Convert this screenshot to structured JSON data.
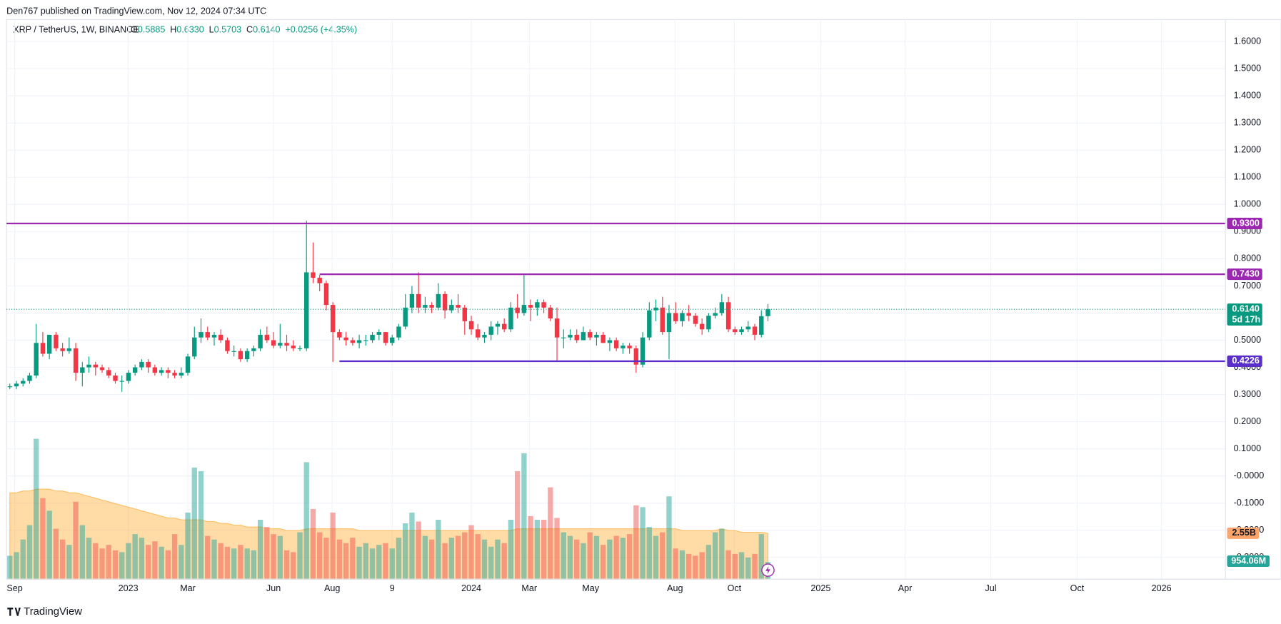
{
  "header": {
    "published": "Den767 published on TradingView.com, Nov 12, 2024 07:34 UTC",
    "symbol": "XRP / TetherUS, 1W, BINANCE",
    "ohlc": [
      {
        "key": "O",
        "value": "0.5885"
      },
      {
        "key": "H",
        "value": "0.6330"
      },
      {
        "key": "L",
        "value": "0.5703"
      },
      {
        "key": "C",
        "value": "0.6140"
      }
    ],
    "change": "+0.0256 (+4.35%)"
  },
  "chart_data": {
    "type": "candlestick",
    "up_color": "#089981",
    "down_color": "#f23645",
    "xlim": [
      -0.5,
      184.4
    ],
    "ylim": [
      -0.38,
      1.681
    ],
    "grid": true,
    "xticks": [
      {
        "value": 0.74,
        "label": "Sep"
      },
      {
        "value": 17.97,
        "label": "2023"
      },
      {
        "value": 27.0,
        "label": "Mar"
      },
      {
        "value": 40.0,
        "label": "Jun"
      },
      {
        "value": 48.9,
        "label": "Aug"
      },
      {
        "value": 58.0,
        "label": "9"
      },
      {
        "value": 70.0,
        "label": "2024"
      },
      {
        "value": 78.8,
        "label": "Mar"
      },
      {
        "value": 88.1,
        "label": "May"
      },
      {
        "value": 100.9,
        "label": "Aug"
      },
      {
        "value": 109.9,
        "label": "Oct"
      },
      {
        "value": 123.0,
        "label": "2025"
      },
      {
        "value": 135.8,
        "label": "Apr"
      },
      {
        "value": 148.8,
        "label": "Jul"
      },
      {
        "value": 161.9,
        "label": "Oct"
      },
      {
        "value": 174.7,
        "label": "2026"
      }
    ],
    "yticks": [
      {
        "value": 1.6,
        "label": "1.6000"
      },
      {
        "value": 1.5,
        "label": "1.5000"
      },
      {
        "value": 1.4,
        "label": "1.4000"
      },
      {
        "value": 1.3,
        "label": "1.3000"
      },
      {
        "value": 1.2,
        "label": "1.2000"
      },
      {
        "value": 1.1,
        "label": "1.1000"
      },
      {
        "value": 1.0,
        "label": "1.0000"
      },
      {
        "value": 0.9,
        "label": "0.9000"
      },
      {
        "value": 0.8,
        "label": "0.8000"
      },
      {
        "value": 0.7,
        "label": "0.7000"
      },
      {
        "value": 0.6,
        "label": "0.6000"
      },
      {
        "value": 0.5,
        "label": "0.5000"
      },
      {
        "value": 0.4,
        "label": "0.4000"
      },
      {
        "value": 0.3,
        "label": "0.3000"
      },
      {
        "value": 0.2,
        "label": "0.2000"
      },
      {
        "value": 0.1,
        "label": "0.1000"
      },
      {
        "value": 0,
        "label": "-0.0000"
      },
      {
        "value": -0.1,
        "label": "-0.1000"
      },
      {
        "value": -0.2,
        "label": "-0.2000"
      },
      {
        "value": -0.3,
        "label": "-0.3000"
      }
    ],
    "candles": [
      [
        0.33,
        0.34,
        0.32,
        0.33
      ],
      [
        0.33,
        0.35,
        0.32,
        0.34
      ],
      [
        0.34,
        0.36,
        0.33,
        0.35
      ],
      [
        0.35,
        0.38,
        0.34,
        0.37
      ],
      [
        0.37,
        0.56,
        0.36,
        0.49
      ],
      [
        0.49,
        0.53,
        0.44,
        0.45
      ],
      [
        0.45,
        0.52,
        0.43,
        0.52
      ],
      [
        0.52,
        0.53,
        0.46,
        0.47
      ],
      [
        0.47,
        0.49,
        0.44,
        0.46
      ],
      [
        0.46,
        0.51,
        0.45,
        0.47
      ],
      [
        0.47,
        0.49,
        0.35,
        0.38
      ],
      [
        0.38,
        0.42,
        0.33,
        0.4
      ],
      [
        0.4,
        0.44,
        0.38,
        0.41
      ],
      [
        0.41,
        0.42,
        0.37,
        0.4
      ],
      [
        0.4,
        0.41,
        0.38,
        0.39
      ],
      [
        0.39,
        0.4,
        0.36,
        0.37
      ],
      [
        0.37,
        0.38,
        0.34,
        0.35
      ],
      [
        0.35,
        0.37,
        0.31,
        0.35
      ],
      [
        0.35,
        0.39,
        0.34,
        0.38
      ],
      [
        0.38,
        0.41,
        0.37,
        0.4
      ],
      [
        0.4,
        0.43,
        0.39,
        0.42
      ],
      [
        0.42,
        0.43,
        0.38,
        0.4
      ],
      [
        0.4,
        0.41,
        0.37,
        0.38
      ],
      [
        0.38,
        0.4,
        0.37,
        0.39
      ],
      [
        0.39,
        0.4,
        0.36,
        0.38
      ],
      [
        0.38,
        0.39,
        0.36,
        0.37
      ],
      [
        0.37,
        0.4,
        0.36,
        0.38
      ],
      [
        0.38,
        0.45,
        0.37,
        0.44
      ],
      [
        0.44,
        0.55,
        0.43,
        0.51
      ],
      [
        0.51,
        0.58,
        0.49,
        0.53
      ],
      [
        0.53,
        0.55,
        0.5,
        0.51
      ],
      [
        0.51,
        0.53,
        0.48,
        0.52
      ],
      [
        0.52,
        0.54,
        0.49,
        0.5
      ],
      [
        0.5,
        0.51,
        0.45,
        0.46
      ],
      [
        0.46,
        0.48,
        0.44,
        0.46
      ],
      [
        0.46,
        0.47,
        0.42,
        0.43
      ],
      [
        0.43,
        0.47,
        0.42,
        0.46
      ],
      [
        0.46,
        0.48,
        0.44,
        0.47
      ],
      [
        0.47,
        0.54,
        0.46,
        0.52
      ],
      [
        0.52,
        0.55,
        0.49,
        0.5
      ],
      [
        0.5,
        0.53,
        0.47,
        0.48
      ],
      [
        0.48,
        0.56,
        0.47,
        0.49
      ],
      [
        0.49,
        0.52,
        0.46,
        0.48
      ],
      [
        0.48,
        0.5,
        0.46,
        0.47
      ],
      [
        0.47,
        0.48,
        0.46,
        0.47
      ],
      [
        0.47,
        0.94,
        0.46,
        0.75
      ],
      [
        0.75,
        0.86,
        0.71,
        0.73
      ],
      [
        0.73,
        0.74,
        0.68,
        0.71
      ],
      [
        0.71,
        0.72,
        0.61,
        0.63
      ],
      [
        0.63,
        0.64,
        0.42,
        0.53
      ],
      [
        0.53,
        0.54,
        0.5,
        0.51
      ],
      [
        0.51,
        0.53,
        0.48,
        0.5
      ],
      [
        0.5,
        0.51,
        0.48,
        0.49
      ],
      [
        0.49,
        0.52,
        0.47,
        0.5
      ],
      [
        0.5,
        0.52,
        0.48,
        0.5
      ],
      [
        0.5,
        0.53,
        0.49,
        0.52
      ],
      [
        0.52,
        0.54,
        0.5,
        0.53
      ],
      [
        0.53,
        0.53,
        0.48,
        0.49
      ],
      [
        0.49,
        0.52,
        0.48,
        0.51
      ],
      [
        0.51,
        0.56,
        0.5,
        0.55
      ],
      [
        0.55,
        0.67,
        0.54,
        0.62
      ],
      [
        0.62,
        0.7,
        0.6,
        0.67
      ],
      [
        0.67,
        0.75,
        0.6,
        0.62
      ],
      [
        0.62,
        0.66,
        0.6,
        0.63
      ],
      [
        0.63,
        0.64,
        0.6,
        0.62
      ],
      [
        0.62,
        0.71,
        0.61,
        0.67
      ],
      [
        0.67,
        0.68,
        0.58,
        0.61
      ],
      [
        0.61,
        0.65,
        0.6,
        0.63
      ],
      [
        0.63,
        0.67,
        0.6,
        0.62
      ],
      [
        0.62,
        0.63,
        0.52,
        0.57
      ],
      [
        0.57,
        0.59,
        0.52,
        0.54
      ],
      [
        0.54,
        0.56,
        0.5,
        0.51
      ],
      [
        0.51,
        0.53,
        0.49,
        0.52
      ],
      [
        0.52,
        0.57,
        0.5,
        0.55
      ],
      [
        0.55,
        0.57,
        0.52,
        0.56
      ],
      [
        0.56,
        0.58,
        0.53,
        0.54
      ],
      [
        0.54,
        0.64,
        0.53,
        0.62
      ],
      [
        0.62,
        0.67,
        0.58,
        0.6
      ],
      [
        0.6,
        0.74,
        0.59,
        0.63
      ],
      [
        0.63,
        0.65,
        0.57,
        0.62
      ],
      [
        0.62,
        0.65,
        0.59,
        0.64
      ],
      [
        0.64,
        0.65,
        0.6,
        0.62
      ],
      [
        0.62,
        0.63,
        0.57,
        0.58
      ],
      [
        0.58,
        0.62,
        0.42,
        0.51
      ],
      [
        0.51,
        0.54,
        0.47,
        0.51
      ],
      [
        0.51,
        0.54,
        0.5,
        0.52
      ],
      [
        0.52,
        0.54,
        0.49,
        0.5
      ],
      [
        0.5,
        0.55,
        0.5,
        0.53
      ],
      [
        0.53,
        0.54,
        0.5,
        0.51
      ],
      [
        0.51,
        0.53,
        0.48,
        0.52
      ],
      [
        0.52,
        0.53,
        0.49,
        0.49
      ],
      [
        0.49,
        0.51,
        0.46,
        0.5
      ],
      [
        0.5,
        0.51,
        0.46,
        0.47
      ],
      [
        0.47,
        0.49,
        0.45,
        0.48
      ],
      [
        0.48,
        0.49,
        0.45,
        0.47
      ],
      [
        0.47,
        0.48,
        0.38,
        0.41
      ],
      [
        0.41,
        0.53,
        0.4,
        0.51
      ],
      [
        0.51,
        0.64,
        0.5,
        0.61
      ],
      [
        0.61,
        0.65,
        0.57,
        0.62
      ],
      [
        0.62,
        0.66,
        0.52,
        0.53
      ],
      [
        0.53,
        0.63,
        0.43,
        0.6
      ],
      [
        0.6,
        0.64,
        0.56,
        0.57
      ],
      [
        0.57,
        0.61,
        0.55,
        0.6
      ],
      [
        0.6,
        0.63,
        0.57,
        0.59
      ],
      [
        0.59,
        0.6,
        0.55,
        0.56
      ],
      [
        0.56,
        0.58,
        0.52,
        0.54
      ],
      [
        0.54,
        0.6,
        0.53,
        0.59
      ],
      [
        0.59,
        0.62,
        0.58,
        0.6
      ],
      [
        0.6,
        0.67,
        0.59,
        0.64
      ],
      [
        0.64,
        0.66,
        0.53,
        0.54
      ],
      [
        0.54,
        0.55,
        0.52,
        0.53
      ],
      [
        0.53,
        0.55,
        0.52,
        0.54
      ],
      [
        0.54,
        0.57,
        0.53,
        0.55
      ],
      [
        0.55,
        0.56,
        0.5,
        0.52
      ],
      [
        0.52,
        0.61,
        0.51,
        0.5885
      ],
      [
        0.5885,
        0.633,
        0.5703,
        0.614
      ]
    ],
    "volume": {
      "ylim": [
        0,
        31.1
      ],
      "up_color": "rgba(38,166,154,0.5)",
      "down_color": "rgba(239,83,80,0.5)",
      "ma_color": "rgba(255,152,0,0.35)",
      "values": [
        1.3,
        1.5,
        2.2,
        3.0,
        7.8,
        4.5,
        3.8,
        2.8,
        2.2,
        1.9,
        4.3,
        3.0,
        2.3,
        2.0,
        1.7,
        1.9,
        1.6,
        1.5,
        2.0,
        2.5,
        2.3,
        1.9,
        2.1,
        1.8,
        1.6,
        2.5,
        1.9,
        3.7,
        6.2,
        6.0,
        2.4,
        2.2,
        2.0,
        1.8,
        1.7,
        1.9,
        1.7,
        1.6,
        3.3,
        2.9,
        2.5,
        2.4,
        1.6,
        1.5,
        2.6,
        6.5,
        3.9,
        2.6,
        2.3,
        3.7,
        2.2,
        2.0,
        2.3,
        1.8,
        2.0,
        1.7,
        1.9,
        2.0,
        1.7,
        2.3,
        3.1,
        3.7,
        3.2,
        2.4,
        2.2,
        3.3,
        2.0,
        2.3,
        2.4,
        2.6,
        3.0,
        2.5,
        2.2,
        1.8,
        2.2,
        2.0,
        3.3,
        6.0,
        7.0,
        3.5,
        3.3,
        3.3,
        5.1,
        3.4,
        2.6,
        2.4,
        2.2,
        2.0,
        2.6,
        2.4,
        1.9,
        2.2,
        2.4,
        2.3,
        2.5,
        4.1,
        4.0,
        2.9,
        2.4,
        2.6,
        4.6,
        1.7,
        1.6,
        1.4,
        1.3,
        1.5,
        1.9,
        2.6,
        2.8,
        1.6,
        1.4,
        1.5,
        1.2,
        1.4,
        2.5,
        0.95406
      ],
      "last_value_label": "954.06M",
      "ma": [
        4.8,
        4.8,
        4.9,
        4.9,
        5.0,
        5.0,
        5.0,
        4.9,
        4.9,
        4.8,
        4.8,
        4.7,
        4.6,
        4.5,
        4.4,
        4.3,
        4.2,
        4.1,
        4.0,
        3.9,
        3.8,
        3.7,
        3.6,
        3.5,
        3.4,
        3.4,
        3.3,
        3.3,
        3.3,
        3.3,
        3.2,
        3.2,
        3.1,
        3.1,
        3.0,
        3.0,
        2.9,
        2.9,
        2.9,
        2.8,
        2.8,
        2.8,
        2.7,
        2.7,
        2.7,
        2.8,
        2.8,
        2.8,
        2.8,
        2.8,
        2.8,
        2.8,
        2.8,
        2.7,
        2.7,
        2.7,
        2.7,
        2.7,
        2.7,
        2.7,
        2.7,
        2.7,
        2.7,
        2.7,
        2.7,
        2.7,
        2.7,
        2.7,
        2.7,
        2.7,
        2.7,
        2.7,
        2.7,
        2.7,
        2.7,
        2.7,
        2.7,
        2.8,
        2.8,
        2.8,
        2.8,
        2.8,
        2.8,
        2.8,
        2.8,
        2.8,
        2.8,
        2.8,
        2.8,
        2.8,
        2.8,
        2.8,
        2.8,
        2.8,
        2.8,
        2.8,
        2.8,
        2.8,
        2.8,
        2.8,
        2.8,
        2.8,
        2.7,
        2.7,
        2.7,
        2.7,
        2.7,
        2.7,
        2.8,
        2.7,
        2.7,
        2.6,
        2.6,
        2.6,
        2.6,
        2.55
      ],
      "ma_last_label": "2.55B"
    },
    "levels": [
      {
        "value": 0.93,
        "label": "0.9300",
        "color": "#9c27b0",
        "start": -0.5
      },
      {
        "value": 0.743,
        "label": "0.7430",
        "color": "#9c27b0",
        "start": 47
      },
      {
        "value": 0.4226,
        "label": "0.4226",
        "color": "#5b2fc9",
        "start": 50
      }
    ],
    "last_price": {
      "value": 0.614,
      "label": "0.6140",
      "countdown": "5d 17h",
      "color": "#089981"
    }
  },
  "footer": {
    "brand": "TradingView"
  }
}
